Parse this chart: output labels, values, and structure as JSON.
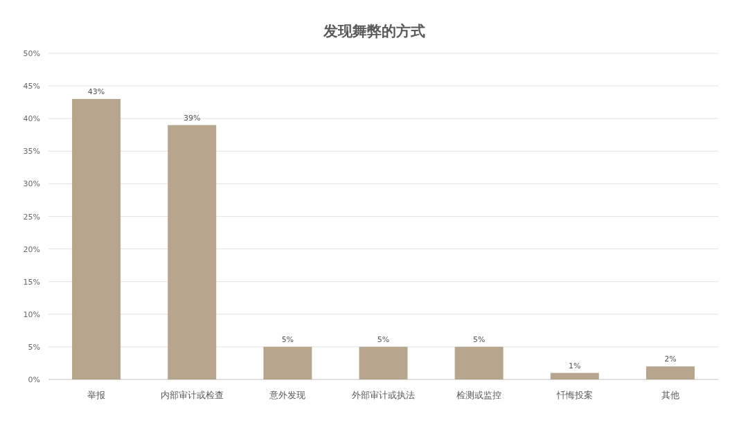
{
  "chart_data": {
    "type": "bar",
    "title": "发现舞弊的方式",
    "categories": [
      "举报",
      "内部审计或检查",
      "意外发现",
      "外部审计或执法",
      "检测或监控",
      "忏悔投案",
      "其他"
    ],
    "values": [
      43,
      39,
      5,
      5,
      5,
      1,
      2
    ],
    "value_labels": [
      "43%",
      "39%",
      "5%",
      "5%",
      "5%",
      "1%",
      "2%"
    ],
    "color": "#b7a58d",
    "ylim": [
      0,
      50
    ],
    "yticks": [
      {
        "value": 0,
        "label": "0%"
      },
      {
        "value": 5,
        "label": "5%"
      },
      {
        "value": 10,
        "label": "10%"
      },
      {
        "value": 15,
        "label": "15%"
      },
      {
        "value": 20,
        "label": "20%"
      },
      {
        "value": 25,
        "label": "25%"
      },
      {
        "value": 30,
        "label": "30%"
      },
      {
        "value": 35,
        "label": "35%"
      },
      {
        "value": 40,
        "label": "40%"
      },
      {
        "value": 45,
        "label": "45%"
      },
      {
        "value": 50,
        "label": "50%"
      }
    ],
    "grid": "y"
  }
}
